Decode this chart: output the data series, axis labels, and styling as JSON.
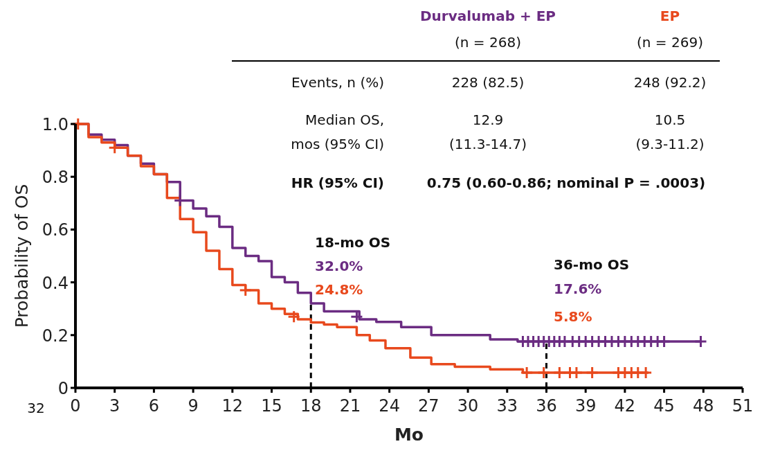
{
  "chart_data": {
    "type": "step",
    "xlabel": "Mo",
    "ylabel": "Probability of OS",
    "xlim": [
      0,
      51
    ],
    "xticks": [
      0,
      3,
      6,
      9,
      12,
      15,
      18,
      21,
      24,
      27,
      30,
      33,
      36,
      39,
      42,
      45,
      48,
      51
    ],
    "ylim": [
      0,
      1
    ],
    "yticks": [
      0,
      0.2,
      0.4,
      0.6,
      0.8,
      {
        "value": 1,
        "label": "1.0"
      }
    ],
    "grid": false,
    "legend": "top right",
    "series": [
      {
        "name": "Durvalumab + EP",
        "color": "#6b2c82",
        "x": [
          0,
          1,
          2,
          3,
          4,
          5,
          6,
          7,
          8,
          9,
          10,
          11,
          12,
          13,
          14,
          15,
          16,
          17,
          18,
          19,
          21.7,
          23,
          24.9,
          27.2,
          31.7,
          33.8,
          47.8
        ],
        "values": [
          1.0,
          0.96,
          0.94,
          0.92,
          0.88,
          0.85,
          0.81,
          0.78,
          0.71,
          0.68,
          0.65,
          0.61,
          0.53,
          0.5,
          0.48,
          0.42,
          0.4,
          0.36,
          0.32,
          0.29,
          0.26,
          0.25,
          0.23,
          0.2,
          0.184,
          0.176,
          0.176
        ]
      },
      {
        "name": "EP",
        "color": "#e8491d",
        "x": [
          0,
          1,
          2,
          3,
          4,
          5,
          6,
          7,
          8,
          9,
          10,
          11,
          12,
          13,
          14,
          15,
          16,
          17,
          18,
          19,
          20,
          21.5,
          22.5,
          23.7,
          25.6,
          27.2,
          29,
          31.7,
          34.2,
          43.8
        ],
        "values": [
          1.0,
          0.95,
          0.93,
          0.91,
          0.88,
          0.84,
          0.81,
          0.72,
          0.64,
          0.59,
          0.52,
          0.45,
          0.39,
          0.37,
          0.32,
          0.3,
          0.28,
          0.26,
          0.248,
          0.24,
          0.23,
          0.2,
          0.18,
          0.15,
          0.115,
          0.09,
          0.08,
          0.07,
          0.058,
          0.058
        ]
      },
      {
        "color": "#6b2c82",
        "type": "scatter",
        "marker": "cross",
        "x": [
          8,
          21.5,
          34.2,
          34.6,
          35,
          35.4,
          35.8,
          36.2,
          36.6,
          37,
          37.4,
          38,
          38.5,
          39,
          39.5,
          40,
          40.5,
          41,
          41.5,
          42,
          42.5,
          43,
          43.5,
          44,
          44.5,
          45,
          47.8
        ],
        "values": [
          0.71,
          0.27,
          0.176,
          0.176,
          0.176,
          0.176,
          0.176,
          0.176,
          0.176,
          0.176,
          0.176,
          0.176,
          0.176,
          0.176,
          0.176,
          0.176,
          0.176,
          0.176,
          0.176,
          0.176,
          0.176,
          0.176,
          0.176,
          0.176,
          0.176,
          0.176,
          0.176
        ]
      },
      {
        "color": "#e8491d",
        "type": "scatter",
        "marker": "cross",
        "x": [
          0.2,
          3,
          13,
          16.7,
          34.5,
          35.8,
          37,
          37.8,
          38.3,
          39.5,
          41.5,
          42,
          42.5,
          43,
          43.6
        ],
        "values": [
          1.0,
          0.91,
          0.37,
          0.27,
          0.058,
          0.058,
          0.058,
          0.058,
          0.058,
          0.058,
          0.058,
          0.058,
          0.058,
          0.058,
          0.058
        ]
      }
    ],
    "ref_lines": [
      {
        "axis": "x",
        "value": 18,
        "color": "#000000",
        "line_style": "dashed"
      },
      {
        "axis": "x",
        "value": 36,
        "color": "#000000",
        "line_style": "dashed"
      }
    ],
    "annotations": [
      "(n = 268)",
      "(n = 269)",
      "Events, n (%)",
      "228 (82.5)",
      "248 (92.2)",
      "Median OS,",
      "mos (95% CI)",
      "12.9",
      "(11.3-14.7)",
      "10.5",
      "(9.3-11.2)",
      "HR (95% CI)",
      "0.75 (0.60-0.86; nominal P = .0003)",
      "18-mo OS",
      "32.0%",
      "24.8%",
      "36-mo OS",
      "17.6%",
      "5.8%",
      "32"
    ]
  }
}
